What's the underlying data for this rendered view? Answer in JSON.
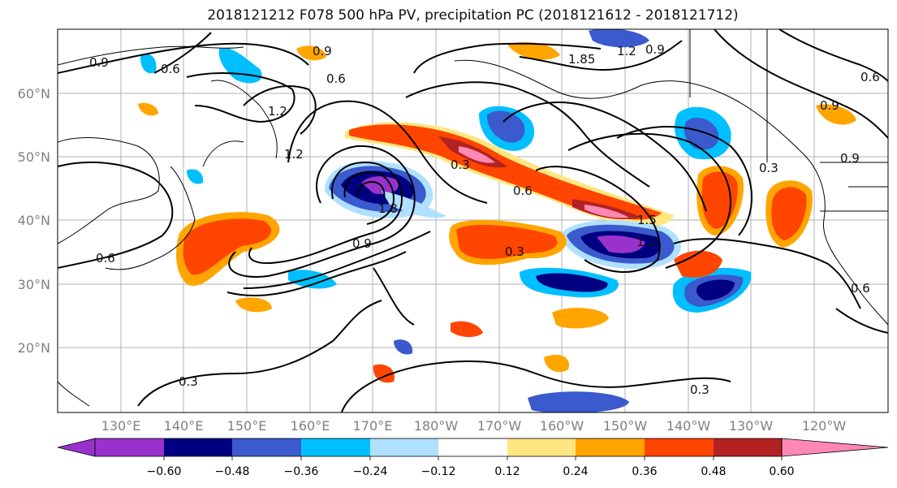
{
  "title": "2018121212 F078 500 hPa PV, precipitation PC (2018121612 - 2018121712)",
  "map": {
    "lat_labels": [
      "60°N",
      "50°N",
      "40°N",
      "30°N",
      "20°N"
    ],
    "lon_labels": [
      "130°E",
      "140°E",
      "150°E",
      "160°E",
      "170°E",
      "180°W",
      "170°W",
      "160°W",
      "150°W",
      "140°W",
      "130°W",
      "120°W"
    ],
    "contour_labels": [
      "0.9",
      "0.6",
      "0.9",
      "0.6",
      "1.2",
      "1.2",
      "1.85",
      "1.2",
      "0.9",
      "0.3",
      "0.6",
      "1.5",
      "1.2",
      "1.8",
      "0.9",
      "0.6",
      "0.3",
      "0.3",
      "0.3",
      "0.6",
      "0.9",
      "0.9",
      "0.6",
      "0.3"
    ],
    "colors": {
      "neg_060": "#9932cc",
      "neg_048": "#000080",
      "neg_036": "#3a5acd",
      "neg_024": "#00bfff",
      "neg_012": "#b0e0ff",
      "neutral": "#ffffff",
      "pos_012": "#ffe680",
      "pos_024": "#ffa500",
      "pos_036": "#ff4500",
      "pos_048": "#b22222",
      "pos_060": "#ff88b4",
      "contour": "#000000",
      "coast": "#000000",
      "grid": "#b0b0b0"
    }
  },
  "colorbar": {
    "tick_labels": [
      "−0.60",
      "−0.48",
      "−0.36",
      "−0.24",
      "−0.12",
      "0.12",
      "0.24",
      "0.36",
      "0.48",
      "0.60"
    ],
    "colors": [
      "#9932cc",
      "#000080",
      "#3a5acd",
      "#00bfff",
      "#b0e0ff",
      "#ffffff",
      "#ffe680",
      "#ffa500",
      "#ff4500",
      "#b22222",
      "#ff88b4"
    ]
  }
}
